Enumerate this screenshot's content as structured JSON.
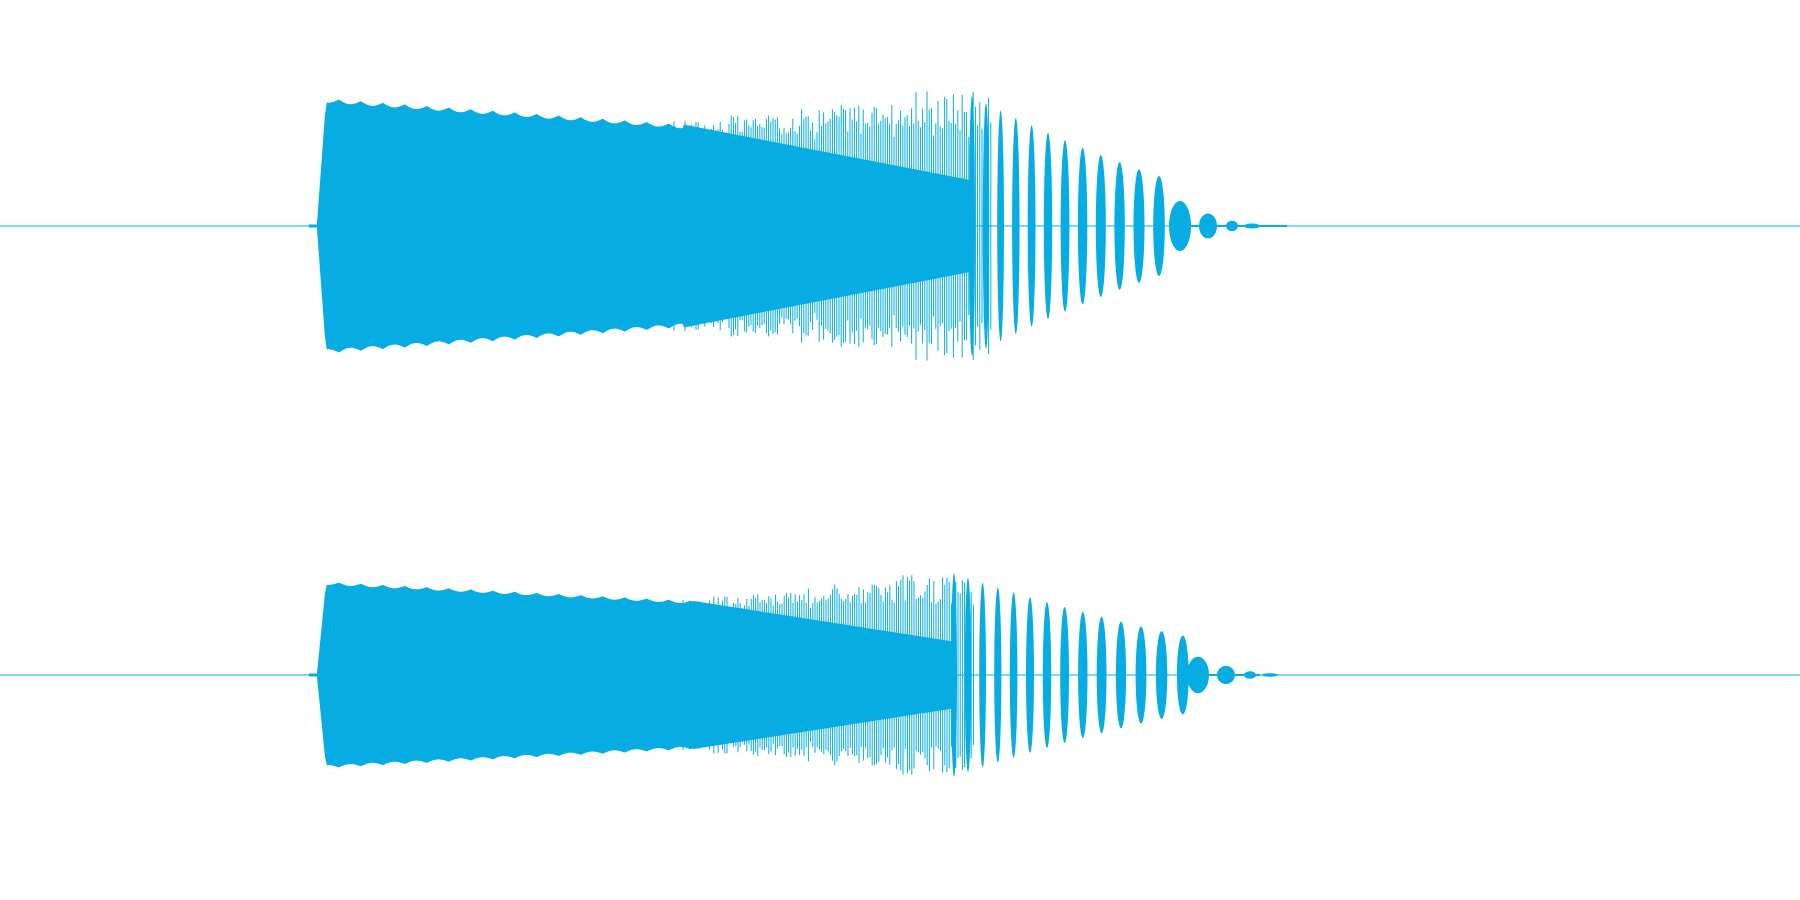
{
  "waveform": {
    "color": "#06ace2",
    "background": "#ffffff",
    "channels": [
      {
        "name": "left",
        "envelope": {
          "onset_fraction": 0.176,
          "attack_peak_fraction": 0.181,
          "sustain_end_fraction": 0.38,
          "dense_end_fraction": 0.54,
          "ring_end_fraction": 0.65,
          "tail_end_fraction": 0.715,
          "attack_amplitude": 0.98,
          "sustain_amplitude": 0.78,
          "peak_burst_amplitude": 1.1,
          "ring_amplitude": 0.55
        }
      },
      {
        "name": "right",
        "envelope": {
          "onset_fraction": 0.176,
          "attack_peak_fraction": 0.181,
          "sustain_end_fraction": 0.385,
          "dense_end_fraction": 0.53,
          "ring_end_fraction": 0.66,
          "tail_end_fraction": 0.7,
          "attack_amplitude": 0.98,
          "sustain_amplitude": 0.78,
          "peak_burst_amplitude": 1.15,
          "ring_amplitude": 0.62
        }
      }
    ]
  }
}
